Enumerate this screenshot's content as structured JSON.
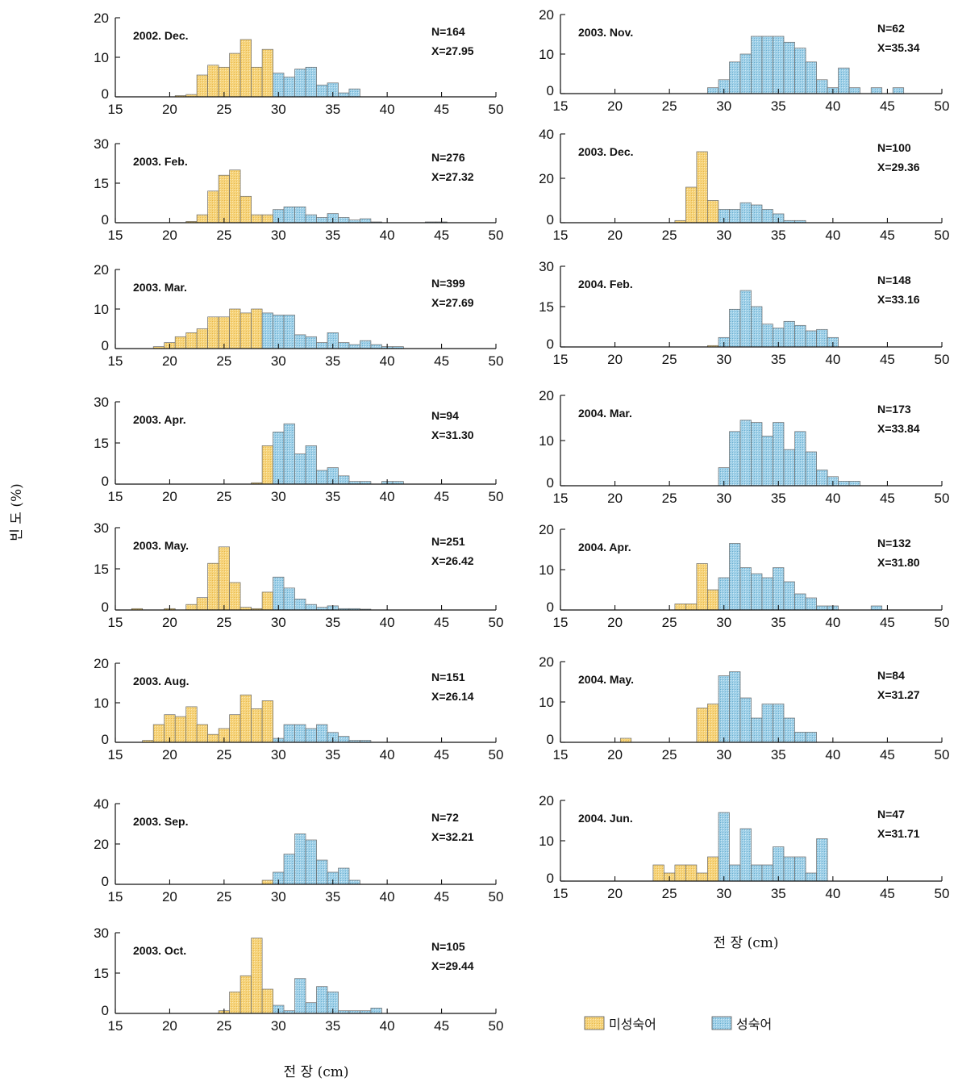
{
  "chart_data": {
    "type": "bar",
    "xlabel": "전 장 (cm)",
    "ylabel": "빈 도 (%)",
    "xlim": [
      15,
      50
    ],
    "xticks": [
      15,
      20,
      25,
      30,
      35,
      40,
      45,
      50
    ],
    "legend": [
      {
        "name": "미성숙어",
        "color": "#f6d37a"
      },
      {
        "name": "성숙어",
        "color": "#9fd0e8"
      }
    ],
    "panels": [
      {
        "id": "2002-dec",
        "title": "2002. Dec.",
        "n_label": "N=164",
        "mean_label": "X=27.95",
        "ylim": [
          0,
          20
        ],
        "yticks": [
          0,
          10,
          20
        ],
        "immature": [
          [
            21,
            0.3
          ],
          [
            22,
            0.6
          ],
          [
            23,
            5.5
          ],
          [
            24,
            8
          ],
          [
            25,
            7.5
          ],
          [
            26,
            11
          ],
          [
            27,
            14.5
          ],
          [
            28,
            7.5
          ],
          [
            29,
            12
          ]
        ],
        "mature": [
          [
            30,
            6
          ],
          [
            31,
            5
          ],
          [
            32,
            7
          ],
          [
            33,
            7.5
          ],
          [
            34,
            3
          ],
          [
            35,
            3.5
          ],
          [
            36,
            1
          ],
          [
            37,
            2
          ]
        ]
      },
      {
        "id": "2003-feb",
        "title": "2003. Feb.",
        "n_label": "N=276",
        "mean_label": "X=27.32",
        "ylim": [
          0,
          30
        ],
        "yticks": [
          0,
          15,
          30
        ],
        "immature": [
          [
            22,
            0.5
          ],
          [
            23,
            3
          ],
          [
            24,
            12
          ],
          [
            25,
            18
          ],
          [
            26,
            20
          ],
          [
            27,
            10
          ],
          [
            28,
            3
          ],
          [
            29,
            3
          ]
        ],
        "mature": [
          [
            30,
            5
          ],
          [
            31,
            6
          ],
          [
            32,
            6
          ],
          [
            33,
            3
          ],
          [
            34,
            2
          ],
          [
            35,
            3.5
          ],
          [
            36,
            2
          ],
          [
            37,
            1
          ],
          [
            38,
            1.5
          ],
          [
            39,
            0.3
          ],
          [
            44,
            0.3
          ],
          [
            45,
            0.3
          ]
        ]
      },
      {
        "id": "2003-mar",
        "title": "2003. Mar.",
        "n_label": "N=399",
        "mean_label": "X=27.69",
        "ylim": [
          0,
          20
        ],
        "yticks": [
          0,
          10,
          20
        ],
        "immature": [
          [
            19,
            0.5
          ],
          [
            20,
            1.5
          ],
          [
            21,
            3
          ],
          [
            22,
            4
          ],
          [
            23,
            5
          ],
          [
            24,
            8
          ],
          [
            25,
            8
          ],
          [
            26,
            10
          ],
          [
            27,
            9
          ],
          [
            28,
            10
          ]
        ],
        "mature": [
          [
            29,
            9
          ],
          [
            30,
            8.5
          ],
          [
            31,
            8.5
          ],
          [
            32,
            3.5
          ],
          [
            33,
            3
          ],
          [
            34,
            1.5
          ],
          [
            35,
            4
          ],
          [
            36,
            1.5
          ],
          [
            37,
            1
          ],
          [
            38,
            2
          ],
          [
            39,
            1
          ],
          [
            40,
            0.5
          ],
          [
            41,
            0.5
          ]
        ]
      },
      {
        "id": "2003-apr",
        "title": "2003. Apr.",
        "n_label": "N=94",
        "mean_label": "X=31.30",
        "ylim": [
          0,
          30
        ],
        "yticks": [
          0,
          15,
          30
        ],
        "immature": [
          [
            28,
            0.5
          ],
          [
            29,
            14
          ]
        ],
        "mature": [
          [
            30,
            19
          ],
          [
            31,
            22
          ],
          [
            32,
            11
          ],
          [
            33,
            14
          ],
          [
            34,
            5
          ],
          [
            35,
            6
          ],
          [
            36,
            3
          ],
          [
            37,
            1
          ],
          [
            38,
            1
          ],
          [
            40,
            1
          ],
          [
            41,
            1
          ]
        ]
      },
      {
        "id": "2003-may",
        "title": "2003. May.",
        "n_label": "N=251",
        "mean_label": "X=26.42",
        "ylim": [
          0,
          30
        ],
        "yticks": [
          0,
          15,
          30
        ],
        "immature": [
          [
            17,
            0.5
          ],
          [
            20,
            0.5
          ],
          [
            22,
            2
          ],
          [
            23,
            4.5
          ],
          [
            24,
            17
          ],
          [
            25,
            23
          ],
          [
            26,
            10
          ],
          [
            27,
            1
          ],
          [
            28,
            0.5
          ],
          [
            29,
            6.5
          ]
        ],
        "mature": [
          [
            30,
            12
          ],
          [
            31,
            8
          ],
          [
            32,
            4
          ],
          [
            33,
            2
          ],
          [
            34,
            1
          ],
          [
            35,
            1.5
          ],
          [
            36,
            0.5
          ],
          [
            37,
            0.5
          ],
          [
            38,
            0.3
          ]
        ]
      },
      {
        "id": "2003-aug",
        "title": "2003. Aug.",
        "n_label": "N=151",
        "mean_label": "X=26.14",
        "ylim": [
          0,
          20
        ],
        "yticks": [
          0,
          10,
          20
        ],
        "immature": [
          [
            18,
            0.5
          ],
          [
            19,
            4.5
          ],
          [
            20,
            7
          ],
          [
            21,
            6.5
          ],
          [
            22,
            9
          ],
          [
            23,
            4.5
          ],
          [
            24,
            2
          ],
          [
            25,
            3.5
          ],
          [
            26,
            7
          ],
          [
            27,
            12
          ],
          [
            28,
            8.5
          ],
          [
            29,
            10.5
          ]
        ],
        "mature": [
          [
            30,
            1
          ],
          [
            31,
            4.5
          ],
          [
            32,
            4.5
          ],
          [
            33,
            3.5
          ],
          [
            34,
            4.5
          ],
          [
            35,
            2.5
          ],
          [
            36,
            1.5
          ],
          [
            37,
            0.5
          ],
          [
            38,
            0.5
          ]
        ]
      },
      {
        "id": "2003-sep",
        "title": "2003. Sep.",
        "n_label": "N=72",
        "mean_label": "X=32.21",
        "ylim": [
          0,
          40
        ],
        "yticks": [
          0,
          20,
          40
        ],
        "immature": [
          [
            29,
            2
          ]
        ],
        "mature": [
          [
            30,
            6
          ],
          [
            31,
            15
          ],
          [
            32,
            25
          ],
          [
            33,
            22
          ],
          [
            34,
            12
          ],
          [
            35,
            6
          ],
          [
            36,
            8
          ],
          [
            37,
            2
          ]
        ]
      },
      {
        "id": "2003-oct",
        "title": "2003. Oct.",
        "n_label": "N=105",
        "mean_label": "X=29.44",
        "ylim": [
          0,
          30
        ],
        "yticks": [
          0,
          15,
          30
        ],
        "immature": [
          [
            25,
            1
          ],
          [
            26,
            8
          ],
          [
            27,
            14
          ],
          [
            28,
            28
          ],
          [
            29,
            9
          ]
        ],
        "mature": [
          [
            30,
            3
          ],
          [
            31,
            1
          ],
          [
            32,
            13
          ],
          [
            33,
            4
          ],
          [
            34,
            10
          ],
          [
            35,
            8
          ],
          [
            36,
            1
          ],
          [
            37,
            1
          ],
          [
            38,
            1
          ],
          [
            39,
            2
          ]
        ]
      },
      {
        "id": "2003-nov",
        "title": "2003. Nov.",
        "n_label": "N=62",
        "mean_label": "X=35.34",
        "ylim": [
          0,
          20
        ],
        "yticks": [
          0,
          10,
          20
        ],
        "immature": [],
        "mature": [
          [
            29,
            1.5
          ],
          [
            30,
            3.5
          ],
          [
            31,
            8
          ],
          [
            32,
            10
          ],
          [
            33,
            14.5
          ],
          [
            34,
            14.5
          ],
          [
            35,
            14.5
          ],
          [
            36,
            13
          ],
          [
            37,
            11.5
          ],
          [
            38,
            8
          ],
          [
            39,
            3.5
          ],
          [
            40,
            1.5
          ],
          [
            41,
            6.5
          ],
          [
            42,
            1.5
          ],
          [
            44,
            1.5
          ],
          [
            46,
            1.5
          ]
        ]
      },
      {
        "id": "2003-dec",
        "title": "2003. Dec.",
        "n_label": "N=100",
        "mean_label": "X=29.36",
        "ylim": [
          0,
          40
        ],
        "yticks": [
          0,
          20,
          40
        ],
        "immature": [
          [
            26,
            1
          ],
          [
            27,
            16
          ],
          [
            28,
            32
          ],
          [
            29,
            10
          ]
        ],
        "mature": [
          [
            30,
            6
          ],
          [
            31,
            6
          ],
          [
            32,
            9
          ],
          [
            33,
            8
          ],
          [
            34,
            6
          ],
          [
            35,
            4
          ],
          [
            36,
            1
          ],
          [
            37,
            1
          ]
        ]
      },
      {
        "id": "2004-feb",
        "title": "2004. Feb.",
        "n_label": "N=148",
        "mean_label": "X=33.16",
        "ylim": [
          0,
          30
        ],
        "yticks": [
          0,
          15,
          30
        ],
        "immature": [
          [
            29,
            0.5
          ]
        ],
        "mature": [
          [
            30,
            3.5
          ],
          [
            31,
            14
          ],
          [
            32,
            21
          ],
          [
            33,
            15
          ],
          [
            34,
            8.5
          ],
          [
            35,
            7
          ],
          [
            36,
            9.5
          ],
          [
            37,
            8
          ],
          [
            38,
            6
          ],
          [
            39,
            6.5
          ],
          [
            40,
            3.5
          ]
        ]
      },
      {
        "id": "2004-mar",
        "title": "2004. Mar.",
        "n_label": "N=173",
        "mean_label": "X=33.84",
        "ylim": [
          0,
          20
        ],
        "yticks": [
          0,
          10,
          20
        ],
        "immature": [],
        "mature": [
          [
            30,
            4
          ],
          [
            31,
            12
          ],
          [
            32,
            14.5
          ],
          [
            33,
            14
          ],
          [
            34,
            11
          ],
          [
            35,
            14
          ],
          [
            36,
            8
          ],
          [
            37,
            12
          ],
          [
            38,
            7.5
          ],
          [
            39,
            3.5
          ],
          [
            40,
            2
          ],
          [
            41,
            1
          ],
          [
            42,
            1
          ]
        ]
      },
      {
        "id": "2004-apr",
        "title": "2004. Apr.",
        "n_label": "N=132",
        "mean_label": "X=31.80",
        "ylim": [
          0,
          20
        ],
        "yticks": [
          0,
          10,
          20
        ],
        "immature": [
          [
            26,
            1.5
          ],
          [
            27,
            1.5
          ],
          [
            28,
            11.5
          ],
          [
            29,
            5
          ]
        ],
        "mature": [
          [
            30,
            8
          ],
          [
            31,
            16.5
          ],
          [
            32,
            10.5
          ],
          [
            33,
            9
          ],
          [
            34,
            8
          ],
          [
            35,
            10.5
          ],
          [
            36,
            7
          ],
          [
            37,
            4
          ],
          [
            38,
            3
          ],
          [
            39,
            1
          ],
          [
            40,
            1
          ],
          [
            44,
            1
          ]
        ]
      },
      {
        "id": "2004-may",
        "title": "2004. May.",
        "n_label": "N=84",
        "mean_label": "X=31.27",
        "ylim": [
          0,
          20
        ],
        "yticks": [
          0,
          10,
          20
        ],
        "immature": [
          [
            21,
            1
          ],
          [
            28,
            8.5
          ],
          [
            29,
            9.5
          ]
        ],
        "mature": [
          [
            30,
            16.5
          ],
          [
            31,
            17.5
          ],
          [
            32,
            11
          ],
          [
            33,
            6
          ],
          [
            34,
            9.5
          ],
          [
            35,
            9.5
          ],
          [
            36,
            6
          ],
          [
            37,
            2.5
          ],
          [
            38,
            2.5
          ]
        ]
      },
      {
        "id": "2004-jun",
        "title": "2004. Jun.",
        "n_label": "N=47",
        "mean_label": "X=31.71",
        "ylim": [
          0,
          20
        ],
        "yticks": [
          0,
          10,
          20
        ],
        "immature": [
          [
            24,
            4
          ],
          [
            25,
            2
          ],
          [
            26,
            4
          ],
          [
            27,
            4
          ],
          [
            28,
            2
          ],
          [
            29,
            6
          ]
        ],
        "mature": [
          [
            30,
            17
          ],
          [
            31,
            4
          ],
          [
            32,
            13
          ],
          [
            33,
            4
          ],
          [
            34,
            4
          ],
          [
            35,
            8.5
          ],
          [
            36,
            6
          ],
          [
            37,
            6
          ],
          [
            38,
            2
          ],
          [
            39,
            10.5
          ]
        ]
      }
    ]
  }
}
